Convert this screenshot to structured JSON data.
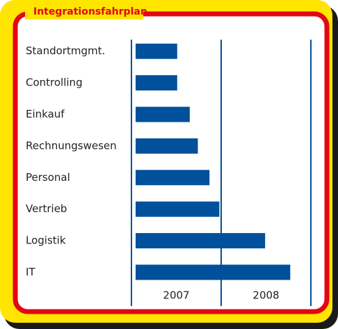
{
  "chart_data": {
    "type": "timeline-bar",
    "title": "Integrationsfahrplan",
    "categories": [
      "Standortmgmt.",
      "Controlling",
      "Einkauf",
      "Rechnungswesen",
      "Personal",
      "Vertrieb",
      "Logistik",
      "IT"
    ],
    "values": [
      2007.51,
      2007.51,
      2007.65,
      2007.74,
      2007.87,
      2007.98,
      2008.49,
      2008.77
    ],
    "color": "#00509b",
    "xlim": [
      2007,
      2009
    ],
    "xticks": [
      {
        "value": 2007.5,
        "label": "2007"
      },
      {
        "value": 2008.5,
        "label": "2008"
      }
    ],
    "gridlines": [
      2007,
      2008,
      2009
    ]
  }
}
